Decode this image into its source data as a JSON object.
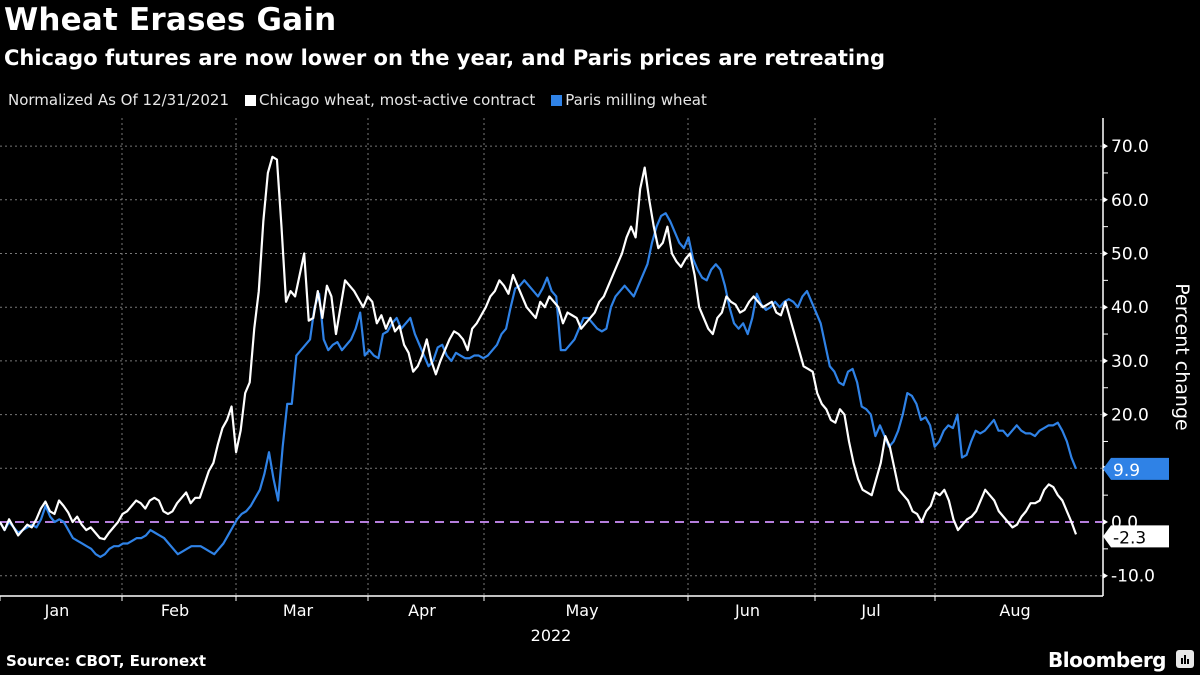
{
  "header": {
    "title": "Wheat Erases Gain",
    "subtitle": "Chicago futures are now lower on the year, and Paris prices are retreating"
  },
  "footer": {
    "source": "Source: CBOT, Euronext",
    "brand": "Bloomberg",
    "brand_icon": "bloomberg-chart-icon"
  },
  "chart_data": {
    "type": "line",
    "title": "Wheat Erases Gain",
    "subtitle": "Chicago futures are now lower on the year, and Paris prices are retreating",
    "legend_note": "Normalized As Of 12/31/2021",
    "xlabel": "2022",
    "ylabel": "Percent change",
    "ylim": [
      -13,
      74
    ],
    "yticks": [
      "70.0",
      "60.0",
      "50.0",
      "40.0",
      "30.0",
      "20.0",
      "10.0",
      "0.0",
      "-10.0"
    ],
    "ytick_values": [
      70,
      60,
      50,
      40,
      30,
      20,
      10,
      0,
      -10
    ],
    "x_categories": [
      "Jan",
      "Feb",
      "Mar",
      "Apr",
      "May",
      "Jun",
      "Jul",
      "Aug"
    ],
    "grid": true,
    "legend_position": "top-left",
    "reference_line": {
      "value": 0,
      "color": "#b57edc",
      "style": "dashed"
    },
    "series": [
      {
        "name": "Chicago wheat, most-active contract",
        "color": "#ffffff",
        "end_label": "-2.3",
        "values": [
          0,
          -1.5,
          0.5,
          -1,
          -2.5,
          -1.5,
          -0.5,
          -1,
          0.5,
          2.5,
          3.8,
          2,
          1.5,
          4,
          3,
          1.8,
          0,
          1,
          -0.5,
          -1.5,
          -1,
          -2,
          -3,
          -3.2,
          -2,
          -1,
          0,
          1.5,
          2,
          3,
          4,
          3.5,
          2.5,
          4,
          4.5,
          4,
          2,
          1.5,
          2,
          3.5,
          4.5,
          5.5,
          3.5,
          4.5,
          4.5,
          7,
          9.5,
          11,
          14.5,
          17.5,
          19,
          21.5,
          13,
          17,
          24,
          26,
          36,
          43,
          56,
          65,
          68,
          67.5,
          55,
          41,
          43,
          42,
          46,
          50,
          37.5,
          38,
          43,
          38,
          44,
          42,
          35,
          40,
          45,
          44,
          43,
          41.5,
          40,
          42,
          41,
          37,
          38.5,
          36,
          38,
          35.5,
          36.5,
          33,
          31.5,
          28,
          29,
          31,
          34,
          30,
          27.5,
          30,
          32,
          34,
          35.5,
          35,
          34,
          32,
          36,
          37,
          38.5,
          40,
          42,
          43,
          45,
          44,
          42.5,
          46,
          44,
          42,
          40,
          39,
          38,
          41,
          40,
          42,
          41,
          40,
          37,
          39,
          38.5,
          38,
          36,
          37,
          38,
          39,
          41,
          42,
          44,
          46,
          48,
          50,
          53,
          55,
          53,
          62,
          66,
          60,
          55,
          51,
          52,
          55,
          50,
          48.5,
          47.5,
          49,
          50,
          46,
          40,
          38,
          36,
          35,
          38,
          39,
          42,
          41,
          40.5,
          39,
          39.5,
          41,
          42,
          41,
          40,
          40.5,
          41,
          39,
          38.5,
          41,
          38,
          35,
          32,
          29,
          28.5,
          28,
          24,
          22,
          21,
          19,
          18.5,
          21,
          20,
          15,
          11,
          8,
          6,
          5.5,
          5,
          8,
          11,
          16,
          14,
          10,
          6,
          5,
          4,
          2,
          1.5,
          0,
          2,
          3,
          5.5,
          5,
          6,
          4,
          0.5,
          -1.5,
          -0.5,
          0.5,
          1,
          2,
          4,
          6,
          5,
          4,
          2,
          1,
          0,
          -1,
          -0.5,
          1,
          2,
          3.5,
          3.5,
          4,
          6,
          7,
          6.5,
          5,
          4,
          2,
          0,
          -2.3
        ]
      },
      {
        "name": "Paris milling wheat",
        "color": "#2f82e6",
        "end_label": "9.9",
        "values": [
          0,
          -1.5,
          0,
          -1,
          -2,
          -1.5,
          -1,
          -0.5,
          -1,
          0.5,
          3,
          1,
          0,
          0.5,
          0,
          -1.5,
          -3,
          -3.5,
          -4,
          -4.5,
          -5,
          -6,
          -6.5,
          -6,
          -5,
          -4.5,
          -4.5,
          -4,
          -4,
          -3.5,
          -3,
          -3,
          -2.5,
          -1.5,
          -2,
          -2.5,
          -3,
          -4,
          -5,
          -6,
          -5.5,
          -5,
          -4.5,
          -4.5,
          -4.5,
          -5,
          -5.5,
          -6,
          -5,
          -4,
          -2.5,
          -1,
          0.5,
          1.5,
          2,
          3,
          4.5,
          6,
          9,
          13,
          8,
          4,
          14,
          22,
          22,
          31,
          32,
          33,
          34,
          40,
          42.5,
          34,
          32,
          33,
          33.5,
          32,
          33,
          34,
          36,
          39,
          31,
          32,
          31,
          30.5,
          35,
          35.5,
          37,
          38,
          36,
          37,
          38,
          35,
          33,
          31,
          29,
          30,
          32.5,
          33,
          31,
          30,
          31.5,
          31,
          30.5,
          30.5,
          31,
          31,
          30.5,
          31,
          32,
          33,
          35,
          36,
          40,
          43.5,
          44,
          45,
          44,
          43,
          42,
          43.5,
          45.5,
          43,
          42,
          32,
          32,
          33,
          34,
          36,
          38,
          38,
          37,
          36,
          35.5,
          36,
          40,
          42,
          43,
          44,
          43,
          42,
          44,
          46,
          48,
          52,
          55,
          57,
          57.5,
          56,
          54,
          52,
          51,
          53,
          49,
          47,
          45.5,
          45,
          47,
          48,
          47,
          44,
          40,
          37,
          36,
          37,
          35,
          38,
          42.5,
          40.5,
          39.5,
          40,
          41,
          40,
          41,
          41.5,
          41,
          40,
          42,
          43,
          41,
          39,
          37,
          33,
          29,
          28,
          26,
          25.5,
          28,
          28.5,
          26,
          21.5,
          21,
          20,
          16,
          18,
          16,
          14,
          15,
          17,
          20,
          24,
          23.5,
          22,
          19,
          19.5,
          18,
          14,
          15,
          17,
          18,
          17.5,
          20,
          12,
          12.5,
          15,
          17,
          16.5,
          17,
          18,
          19,
          17,
          17,
          16,
          17,
          18,
          17,
          16.5,
          16.5,
          16,
          17,
          17.5,
          18,
          18,
          18.5,
          17,
          15,
          12,
          9.9
        ]
      }
    ]
  }
}
